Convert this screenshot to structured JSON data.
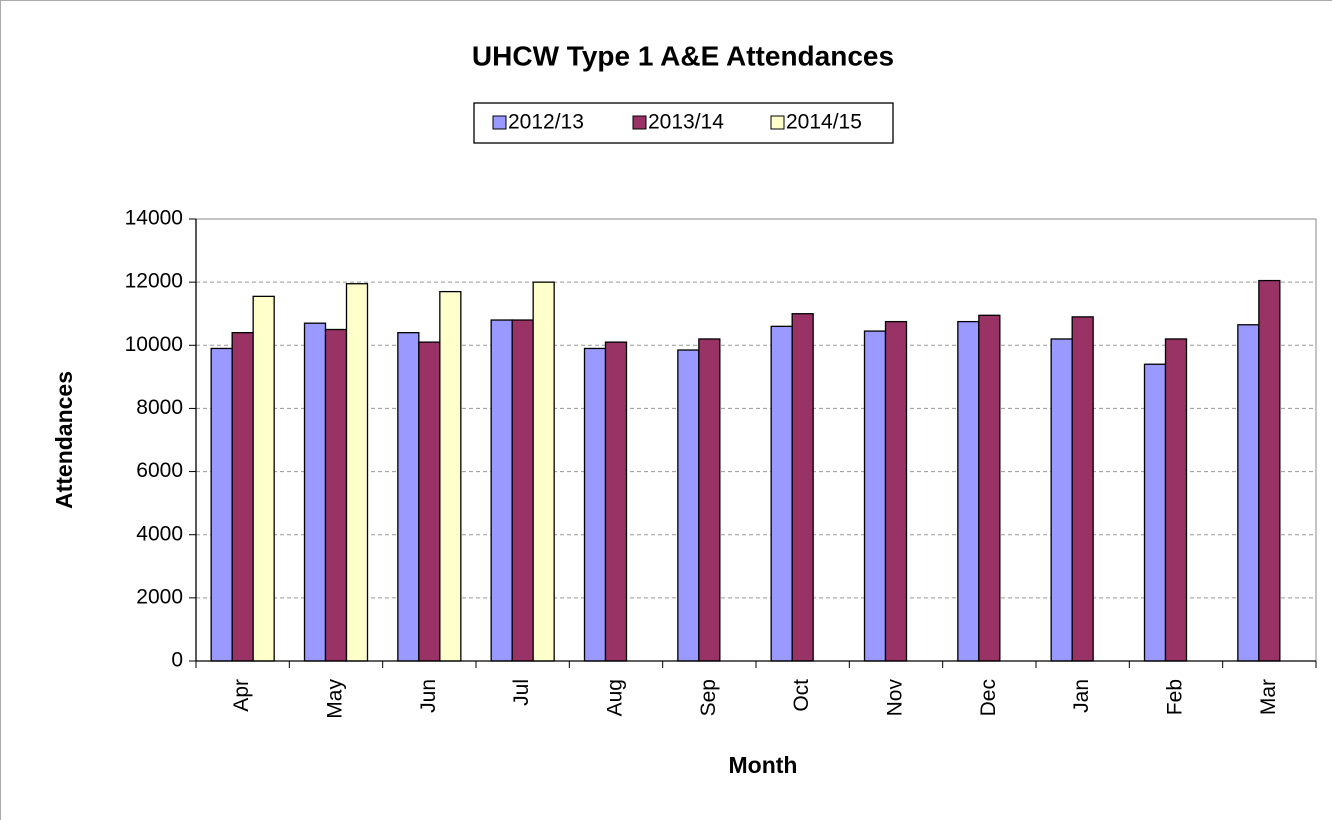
{
  "chart_data": {
    "type": "bar",
    "title": "UHCW Type 1 A&E Attendances",
    "x_label": "Month",
    "y_label": "Attendances",
    "categories": [
      "Apr",
      "May",
      "Jun",
      "Jul",
      "Aug",
      "Sep",
      "Oct",
      "Nov",
      "Dec",
      "Jan",
      "Feb",
      "Mar"
    ],
    "series": [
      {
        "name": "2012/13",
        "color": "#9999ff",
        "values": [
          9900,
          10700,
          10400,
          10800,
          9900,
          9850,
          10600,
          10450,
          10750,
          10200,
          9400,
          10650
        ]
      },
      {
        "name": "2013/14",
        "color": "#993366",
        "values": [
          10400,
          10500,
          10100,
          10800,
          10100,
          10200,
          11000,
          10750,
          10950,
          10900,
          10200,
          12050
        ]
      },
      {
        "name": "2014/15",
        "color": "#ffffcc",
        "values": [
          11550,
          11950,
          11700,
          12000,
          null,
          null,
          null,
          null,
          null,
          null,
          null,
          null
        ]
      }
    ],
    "ylim": [
      0,
      14000
    ],
    "yticks": [
      0,
      2000,
      4000,
      6000,
      8000,
      10000,
      12000,
      14000
    ],
    "grid": true,
    "legend": "top"
  }
}
